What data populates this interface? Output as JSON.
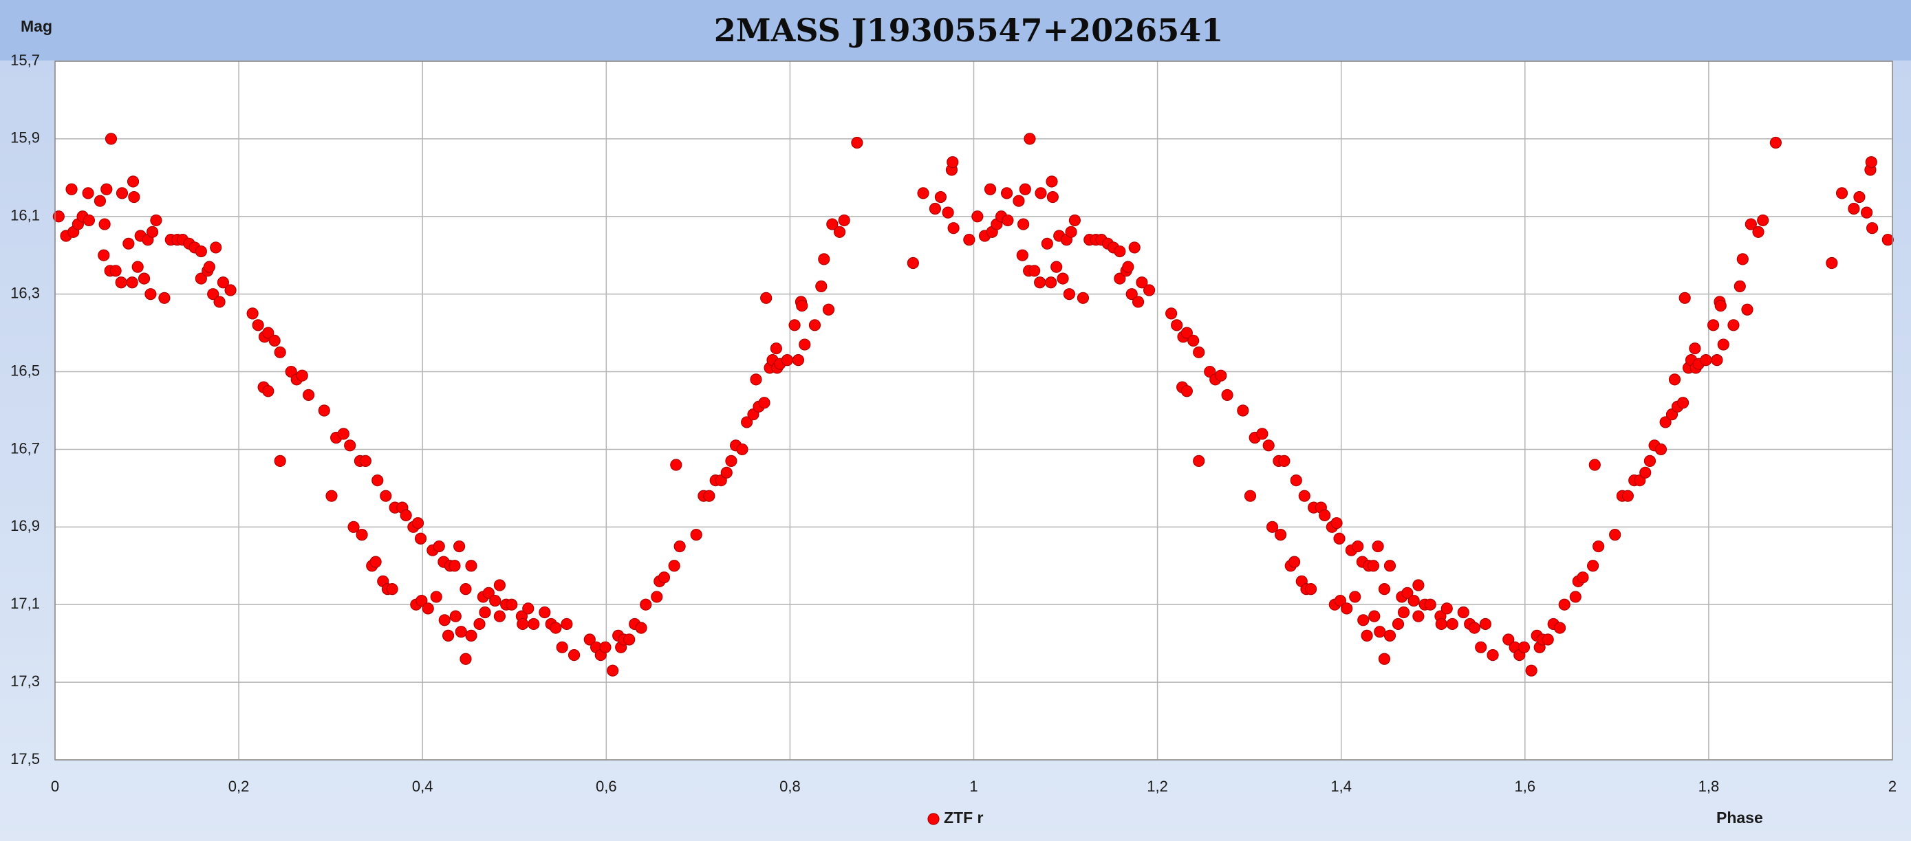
{
  "chart_data": {
    "type": "scatter",
    "title": "2MASS J19305547+2026541",
    "y_label": "Mag",
    "x_label": "Phase",
    "legend": "bottom",
    "grid": true,
    "y_inverted": true,
    "xlim": [
      0,
      2
    ],
    "ylim": [
      15.7,
      17.5
    ],
    "xticks": [
      0,
      {
        "value": 0.2,
        "label": "0,2"
      },
      {
        "value": 0.4,
        "label": "0,4"
      },
      {
        "value": 0.6,
        "label": "0,6"
      },
      {
        "value": 0.8,
        "label": "0,8"
      },
      1,
      {
        "value": 1.2,
        "label": "1,2"
      },
      {
        "value": 1.4,
        "label": "1,4"
      },
      {
        "value": 1.6,
        "label": "1,6"
      },
      {
        "value": 1.8,
        "label": "1,8"
      },
      2
    ],
    "yticks": [
      {
        "value": 15.7,
        "label": "15,7"
      },
      {
        "value": 15.9,
        "label": "15,9"
      },
      {
        "value": 16.1,
        "label": "16,1"
      },
      {
        "value": 16.3,
        "label": "16,3"
      },
      {
        "value": 16.5,
        "label": "16,5"
      },
      {
        "value": 16.7,
        "label": "16,7"
      },
      {
        "value": 16.9,
        "label": "16,9"
      },
      {
        "value": 17.1,
        "label": "17,1"
      },
      {
        "value": 17.3,
        "label": "17,3"
      },
      {
        "value": 17.5,
        "label": "17,5"
      }
    ],
    "series": [
      {
        "name": "ZTF r",
        "color": "#ff0000",
        "x": [
          0.004,
          0.012,
          0.018,
          0.02,
          0.025,
          0.03,
          0.036,
          0.037,
          0.049,
          0.053,
          0.054,
          0.056,
          0.061,
          0.06,
          0.066,
          0.072,
          0.073,
          0.08,
          0.084,
          0.085,
          0.086,
          0.09,
          0.093,
          0.097,
          0.101,
          0.104,
          0.106,
          0.11,
          0.119,
          0.126,
          0.133,
          0.139,
          0.146,
          0.152,
          0.159,
          0.159,
          0.166,
          0.168,
          0.172,
          0.175,
          0.179,
          0.183,
          0.191,
          0.215,
          0.221,
          0.227,
          0.228,
          0.232,
          0.232,
          0.239,
          0.245,
          0.245,
          0.257,
          0.263,
          0.269,
          0.276,
          0.293,
          0.301,
          0.306,
          0.314,
          0.321,
          0.325,
          0.332,
          0.334,
          0.338,
          0.345,
          0.349,
          0.351,
          0.357,
          0.36,
          0.362,
          0.367,
          0.37,
          0.378,
          0.382,
          0.39,
          0.395,
          0.393,
          0.398,
          0.399,
          0.406,
          0.411,
          0.415,
          0.418,
          0.423,
          0.424,
          0.428,
          0.43,
          0.435,
          0.436,
          0.44,
          0.442,
          0.447,
          0.447,
          0.453,
          0.453,
          0.462,
          0.466,
          0.468,
          0.472,
          0.479,
          0.484,
          0.484,
          0.491,
          0.497,
          0.508,
          0.509,
          0.515,
          0.521,
          0.533,
          0.54,
          0.545,
          0.552,
          0.557,
          0.565,
          0.582,
          0.589,
          0.594,
          0.599,
          0.607,
          0.613,
          0.616,
          0.619,
          0.625,
          0.631,
          0.638,
          0.643,
          0.655,
          0.658,
          0.663,
          0.674,
          0.676,
          0.68,
          0.698,
          0.706,
          0.712,
          0.719,
          0.725,
          0.731,
          0.736,
          0.741,
          0.748,
          0.753,
          0.76,
          0.763,
          0.766,
          0.772,
          0.774,
          0.778,
          0.781,
          0.785,
          0.786,
          0.789,
          0.797,
          0.805,
          0.809,
          0.812,
          0.813,
          0.816,
          0.827,
          0.834,
          0.837,
          0.842,
          0.846,
          0.854,
          0.859,
          0.873,
          0.934,
          0.945,
          0.958,
          0.964,
          0.972,
          0.976,
          0.977,
          0.978,
          0.995,
          1.004,
          1.012,
          1.018,
          1.02,
          1.025,
          1.03,
          1.036,
          1.037,
          1.049,
          1.053,
          1.054,
          1.056,
          1.061,
          1.06,
          1.066,
          1.072,
          1.073,
          1.08,
          1.084,
          1.085,
          1.086,
          1.09,
          1.093,
          1.097,
          1.101,
          1.104,
          1.106,
          1.11,
          1.119,
          1.126,
          1.133,
          1.139,
          1.146,
          1.152,
          1.159,
          1.159,
          1.166,
          1.168,
          1.172,
          1.175,
          1.179,
          1.183,
          1.191,
          1.215,
          1.221,
          1.227,
          1.228,
          1.232,
          1.232,
          1.239,
          1.245,
          1.245,
          1.257,
          1.263,
          1.269,
          1.276,
          1.293,
          1.301,
          1.306,
          1.314,
          1.321,
          1.325,
          1.332,
          1.334,
          1.338,
          1.345,
          1.349,
          1.351,
          1.357,
          1.36,
          1.362,
          1.367,
          1.37,
          1.378,
          1.382,
          1.39,
          1.395,
          1.393,
          1.398,
          1.399,
          1.406,
          1.411,
          1.415,
          1.418,
          1.423,
          1.424,
          1.428,
          1.43,
          1.435,
          1.436,
          1.44,
          1.442,
          1.447,
          1.447,
          1.453,
          1.453,
          1.462,
          1.466,
          1.468,
          1.472,
          1.479,
          1.484,
          1.484,
          1.491,
          1.497,
          1.508,
          1.509,
          1.515,
          1.521,
          1.533,
          1.54,
          1.545,
          1.552,
          1.557,
          1.565,
          1.582,
          1.589,
          1.594,
          1.599,
          1.607,
          1.613,
          1.616,
          1.619,
          1.625,
          1.631,
          1.638,
          1.643,
          1.655,
          1.658,
          1.663,
          1.674,
          1.676,
          1.68,
          1.698,
          1.706,
          1.712,
          1.719,
          1.725,
          1.731,
          1.736,
          1.741,
          1.748,
          1.753,
          1.76,
          1.763,
          1.766,
          1.772,
          1.774,
          1.778,
          1.781,
          1.785,
          1.786,
          1.789,
          1.797,
          1.805,
          1.809,
          1.812,
          1.813,
          1.816,
          1.827,
          1.834,
          1.837,
          1.842,
          1.846,
          1.854,
          1.859,
          1.873,
          1.934,
          1.945,
          1.958,
          1.964,
          1.972,
          1.976,
          1.977,
          1.978,
          1.995
        ],
        "values": [
          16.1,
          16.15,
          16.03,
          16.14,
          16.12,
          16.1,
          16.04,
          16.11,
          16.06,
          16.2,
          16.12,
          16.03,
          15.9,
          16.24,
          16.24,
          16.27,
          16.04,
          16.17,
          16.27,
          16.01,
          16.05,
          16.23,
          16.15,
          16.26,
          16.16,
          16.3,
          16.14,
          16.11,
          16.31,
          16.16,
          16.16,
          16.16,
          16.17,
          16.18,
          16.19,
          16.26,
          16.24,
          16.23,
          16.3,
          16.18,
          16.32,
          16.27,
          16.29,
          16.35,
          16.38,
          16.54,
          16.41,
          16.55,
          16.4,
          16.42,
          16.45,
          16.73,
          16.5,
          16.52,
          16.51,
          16.56,
          16.6,
          16.82,
          16.67,
          16.66,
          16.69,
          16.9,
          16.73,
          16.92,
          16.73,
          17.0,
          16.99,
          16.78,
          17.04,
          16.82,
          17.06,
          17.06,
          16.85,
          16.85,
          16.87,
          16.9,
          16.89,
          17.1,
          16.93,
          17.09,
          17.11,
          16.96,
          17.08,
          16.95,
          16.99,
          17.14,
          17.18,
          17.0,
          17.0,
          17.13,
          16.95,
          17.17,
          17.24,
          17.06,
          17.18,
          17.0,
          17.15,
          17.08,
          17.12,
          17.07,
          17.09,
          17.13,
          17.05,
          17.1,
          17.1,
          17.13,
          17.15,
          17.11,
          17.15,
          17.12,
          17.15,
          17.16,
          17.21,
          17.15,
          17.23,
          17.19,
          17.21,
          17.23,
          17.21,
          17.27,
          17.18,
          17.21,
          17.19,
          17.19,
          17.15,
          17.16,
          17.1,
          17.08,
          17.04,
          17.03,
          17.0,
          16.74,
          16.95,
          16.92,
          16.82,
          16.82,
          16.78,
          16.78,
          16.76,
          16.73,
          16.69,
          16.7,
          16.63,
          16.61,
          16.52,
          16.59,
          16.58,
          16.31,
          16.49,
          16.47,
          16.44,
          16.49,
          16.48,
          16.47,
          16.38,
          16.47,
          16.32,
          16.33,
          16.43,
          16.38,
          16.28,
          16.21,
          16.34,
          16.12,
          16.14,
          16.11,
          15.91,
          16.22,
          16.04,
          16.08,
          16.05,
          16.09,
          15.98,
          15.96,
          16.13,
          16.16,
          16.1,
          16.15,
          16.03,
          16.14,
          16.12,
          16.1,
          16.04,
          16.11,
          16.06,
          16.2,
          16.12,
          16.03,
          15.9,
          16.24,
          16.24,
          16.27,
          16.04,
          16.17,
          16.27,
          16.01,
          16.05,
          16.23,
          16.15,
          16.26,
          16.16,
          16.3,
          16.14,
          16.11,
          16.31,
          16.16,
          16.16,
          16.16,
          16.17,
          16.18,
          16.19,
          16.26,
          16.24,
          16.23,
          16.3,
          16.18,
          16.32,
          16.27,
          16.29,
          16.35,
          16.38,
          16.54,
          16.41,
          16.55,
          16.4,
          16.42,
          16.45,
          16.73,
          16.5,
          16.52,
          16.51,
          16.56,
          16.6,
          16.82,
          16.67,
          16.66,
          16.69,
          16.9,
          16.73,
          16.92,
          16.73,
          17.0,
          16.99,
          16.78,
          17.04,
          16.82,
          17.06,
          17.06,
          16.85,
          16.85,
          16.87,
          16.9,
          16.89,
          17.1,
          16.93,
          17.09,
          17.11,
          16.96,
          17.08,
          16.95,
          16.99,
          17.14,
          17.18,
          17.0,
          17.0,
          17.13,
          16.95,
          17.17,
          17.24,
          17.06,
          17.18,
          17.0,
          17.15,
          17.08,
          17.12,
          17.07,
          17.09,
          17.13,
          17.05,
          17.1,
          17.1,
          17.13,
          17.15,
          17.11,
          17.15,
          17.12,
          17.15,
          17.16,
          17.21,
          17.15,
          17.23,
          17.19,
          17.21,
          17.23,
          17.21,
          17.27,
          17.18,
          17.21,
          17.19,
          17.19,
          17.15,
          17.16,
          17.1,
          17.08,
          17.04,
          17.03,
          17.0,
          16.74,
          16.95,
          16.92,
          16.82,
          16.82,
          16.78,
          16.78,
          16.76,
          16.73,
          16.69,
          16.7,
          16.63,
          16.61,
          16.52,
          16.59,
          16.58,
          16.31,
          16.49,
          16.47,
          16.44,
          16.49,
          16.48,
          16.47,
          16.38,
          16.47,
          16.32,
          16.33,
          16.43,
          16.38,
          16.28,
          16.21,
          16.34,
          16.12,
          16.14,
          16.11,
          15.91,
          16.22,
          16.04,
          16.08,
          16.05,
          16.09,
          15.98,
          15.96,
          16.13,
          16.16
        ]
      }
    ]
  }
}
